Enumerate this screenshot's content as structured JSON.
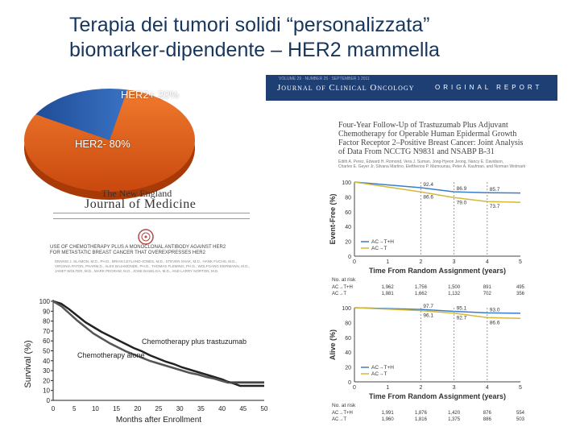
{
  "title": {
    "line1": "Terapia dei tumori solidi “personalizzata”",
    "line2": "biomarker-dipendente – HER2 mammella"
  },
  "pie": {
    "slices": [
      {
        "label": "HER2+ 20%",
        "value": 20,
        "color": "#2a5caa"
      },
      {
        "label": "HER2- 80%",
        "value": 80,
        "color": "#e8621c"
      }
    ]
  },
  "nejm": {
    "masthead_top": "",
    "name_line1": "The New England",
    "name_line2": "Journal of Medicine",
    "article_title": [
      "USE OF CHEMOTHERAPY PLUS A MONOCLONAL ANTIBODY AGAINST HER2",
      "FOR METASTATIC BREAST CANCER THAT OVEREXPRESSES HER2"
    ],
    "authors": [
      "DENNIS J. SLAMON, M.D., PH.D., BRIAN LEYLAND-JONES, M.D., STEVEN SHAK, M.D., HANK FUCHS, M.D.,",
      "VIRGINIA PATON, PHARM.D., ALEX BAJAMONDE, PH.D., THOMAS FLEMING, PH.D., WOLFGANG EIERMANN, M.D.,",
      "JANET WOLTER, M.D., MARK PEGRAM, M.D., JOSE BASELGA, M.D., AND LARRY NORTON, M.D."
    ],
    "chart": {
      "ylabel": "Survival (%)",
      "xlabel": "Months after Enrollment",
      "yticks": [
        "0",
        "10",
        "20",
        "30",
        "40",
        "50",
        "60",
        "70",
        "80",
        "90",
        "100"
      ],
      "xticks": [
        "0",
        "5",
        "10",
        "15",
        "20",
        "25",
        "30",
        "35",
        "40",
        "45",
        "50"
      ],
      "series_labels": [
        "Chemotherapy plus trastuzumab",
        "Chemotherapy alone"
      ]
    }
  },
  "jco": {
    "top_line": "VOLUME 29 · NUMBER 25 · SEPTEMBER 1 2011",
    "journal_name": "Journal of Clinical Oncology",
    "section": "ORIGINAL REPORT",
    "article_title": [
      "Four-Year Follow-Up of Trastuzumab Plus Adjuvant",
      "Chemotherapy for Operable Human Epidermal Growth",
      "Factor Receptor 2–Positive Breast Cancer: Joint Analysis",
      "of Data From NCCTG N9831 and NSABP B-31"
    ],
    "authors": [
      "Edith A. Perez, Edward H. Romond, Vera J. Suman, Jong-Hyeon Jeong, Nancy E. Davidson,",
      "Charles E. Geyer Jr, Silvana Martino, Eleftherios P. Mamounas, Peter A. Kaufman, and Norman Wolmark"
    ],
    "legend": [
      "AC→T+H",
      "AC→T"
    ],
    "chart1": {
      "ylabel": "Event-Free (%)",
      "xlabel": "Time From Random Assignment (years)",
      "yticks": [
        "0",
        "20",
        "40",
        "60",
        "80",
        "100"
      ],
      "xticks": [
        "0",
        "1",
        "2",
        "3",
        "4",
        "5"
      ],
      "annotations_top": [
        "92.4",
        "86.9",
        "85.7"
      ],
      "annotations_bottom": [
        "86.6",
        "79.0",
        "73.7"
      ],
      "risk_header": "No. at risk",
      "risk_rows": [
        {
          "label": "AC→T+H",
          "values": [
            "1,962",
            "1,756",
            "1,500",
            "891",
            "495"
          ]
        },
        {
          "label": "AC→T",
          "values": [
            "1,881",
            "1,662",
            "1,132",
            "702",
            "356"
          ]
        }
      ]
    },
    "chart2": {
      "ylabel": "Alive (%)",
      "xlabel": "Time From Random Assignment (years)",
      "yticks": [
        "0",
        "20",
        "40",
        "60",
        "80",
        "100"
      ],
      "xticks": [
        "0",
        "1",
        "2",
        "3",
        "4",
        "5"
      ],
      "annotations_top": [
        "97.7",
        "95.1",
        "93.0"
      ],
      "annotations_bottom": [
        "96.1",
        "92.7",
        "86.6"
      ],
      "risk_header": "No. at risk",
      "risk_rows": [
        {
          "label": "AC→T+H",
          "values": [
            "1,991",
            "1,876",
            "1,420",
            "876",
            "554"
          ]
        },
        {
          "label": "AC→T",
          "values": [
            "1,960",
            "1,816",
            "1,375",
            "886",
            "503"
          ]
        }
      ]
    }
  }
}
